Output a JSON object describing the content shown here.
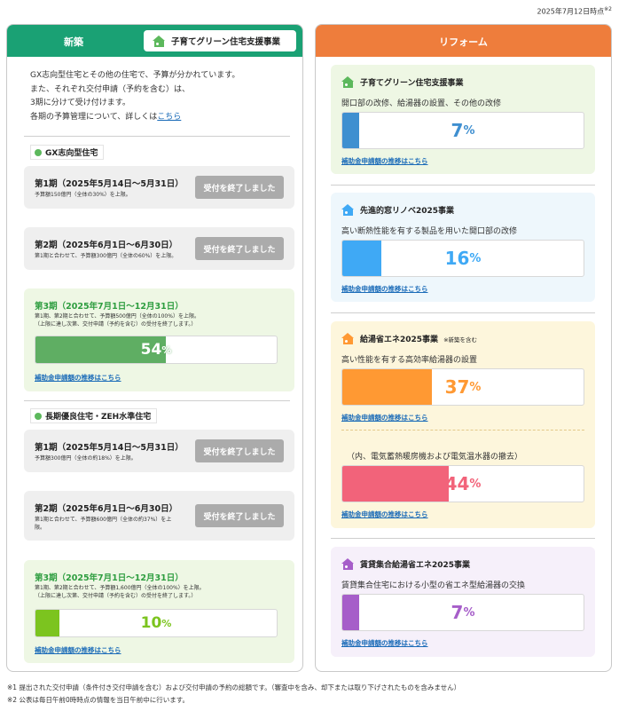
{
  "date": "2025年7月12日時点",
  "date_note": "※2",
  "left": {
    "header": "新築",
    "program": "子育てグリーン住宅支援事業",
    "intro": [
      "GX志向型住宅とその他の住宅で、予算が分かれています。",
      "また、それぞれ交付申請（予約を含む）は、",
      "3期に分けて受け付けます。"
    ],
    "intro_last": "各期の予算管理について、詳しくは",
    "intro_link": "こちら",
    "gx": {
      "label": "GX志向型住宅",
      "p1_title": "第1期（2025年5月14日～5月31日）",
      "p1_note": "予算額150億円（全体の30%）を上限。",
      "p1_btn": "受付を終了しました",
      "p2_title": "第2期（2025年6月1日～6月30日）",
      "p2_note": "第1期と合わせて、予算額300億円（全体の60%）を上限。",
      "p2_btn": "受付を終了しました",
      "p3_title": "第3期（2025年7月1日～12月31日）",
      "p3_note1": "第1期、第2期と合わせて、予算額500億円（全体の100%）を上限。",
      "p3_note2": "（上限に達し次第、交付申請（予約を含む）の受付を終了します。）",
      "p3_pct": "54",
      "p3_progress": 54,
      "p3_link": "補助金申請額の推移はこちら"
    },
    "zeh": {
      "label": "長期優良住宅・ZEH水準住宅",
      "p1_title": "第1期（2025年5月14日～5月31日）",
      "p1_note": "予算額300億円（全体の約18%）を上限。",
      "p1_btn": "受付を終了しました",
      "p2_title": "第2期（2025年6月1日～6月30日）",
      "p2_note1": "第1期と合わせて、予算額600億円（全体の約37%）を上",
      "p2_note2": "限。",
      "p2_btn": "受付を終了しました",
      "p3_title": "第3期（2025年7月1日～12月31日）",
      "p3_note1": "第1期、第2期と合わせて、予算額1,600億円（全体の100%）を上限。",
      "p3_note2": "（上限に達し次第、交付申請（予約を含む）の受付を終了します。）",
      "p3_pct": "10",
      "p3_progress": 10,
      "p3_link": "補助金申請額の推移はこちら"
    }
  },
  "right": {
    "header": "リフォーム",
    "cards": [
      {
        "title": "子育てグリーン住宅支援事業",
        "desc": "開口部の改修、給湯器の設置、その他の改修",
        "pct": "7",
        "progress": 7,
        "link": "補助金申請額の推移はこちら"
      },
      {
        "title": "先進的窓リノベ2025事業",
        "desc": "高い断熱性能を有する製品を用いた開口部の改修",
        "pct": "16",
        "progress": 16,
        "link": "補助金申請額の推移はこちら"
      },
      {
        "title": "給湯省エネ2025事業",
        "title_note": "※新築を含む",
        "desc": "高い性能を有する高効率給湯器の設置",
        "pct": "37",
        "progress": 37,
        "link": "補助金申請額の推移はこちら",
        "sub_desc": "（内、電気蓄熱暖房機および電気温水器の撤去）",
        "sub_pct": "44",
        "sub_progress": 44,
        "sub_link": "補助金申請額の推移はこちら"
      },
      {
        "title": "賃貸集合給湯省エネ2025事業",
        "desc": "賃貸集合住宅における小型の省エネ型給湯器の交換",
        "pct": "7",
        "progress": 7,
        "link": "補助金申請額の推移はこちら"
      }
    ]
  },
  "pct_unit": "%",
  "footnotes": [
    "※1  提出された交付申請（条件付き交付申請を含む）および交付申請の予約の総額です。（審査中を含み、却下または取り下げされたものを含みません）",
    "※2  公表は毎日午前0時時点の情報を当日午前中に行います。"
  ],
  "colors": {
    "new_header": "#1aa174",
    "reform_header": "#ee7d3c",
    "gx_fill": "#5fae63",
    "zeh_fill": "#7cc41f",
    "kosodate_fill": "#3f8fd0",
    "mado_fill": "#3fa9f5",
    "kyuto_fill": "#ff9933",
    "kyuto_sub_fill": "#f2637a",
    "chintai_fill": "#a65ec9"
  }
}
